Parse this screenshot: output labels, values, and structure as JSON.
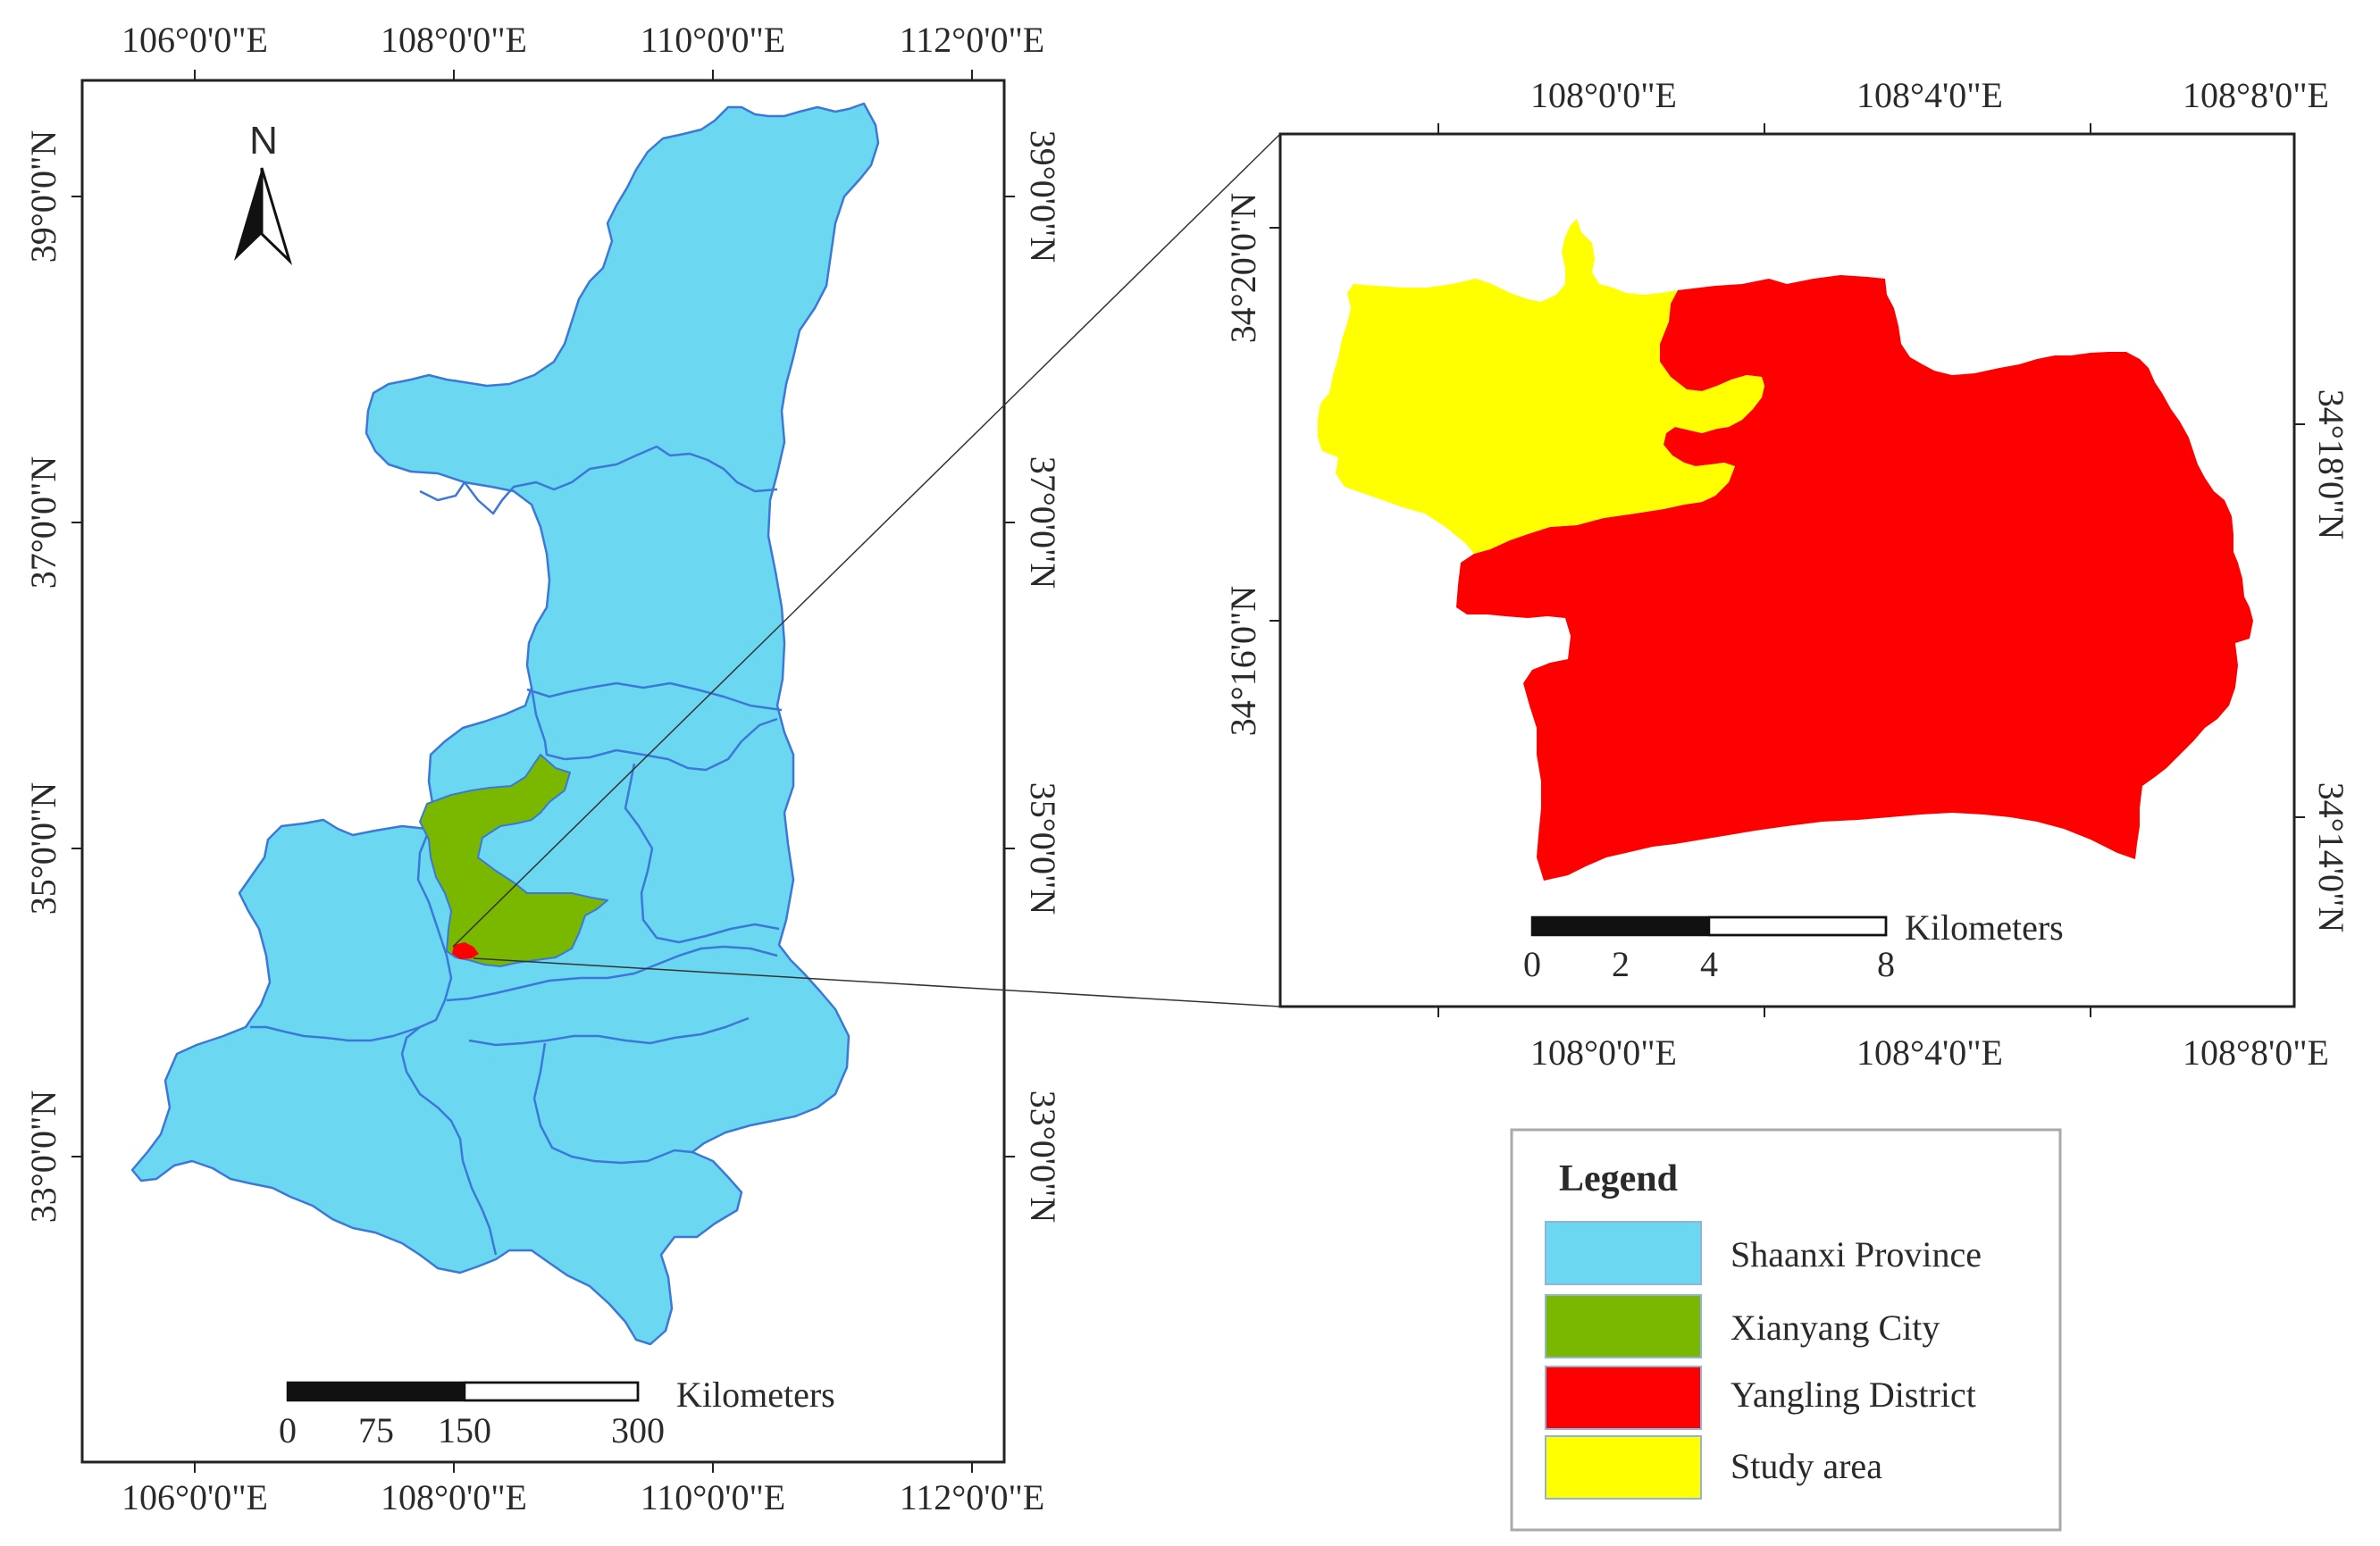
{
  "colors": {
    "province": "#6cd7f0",
    "province_border": "#3b78d8",
    "city": "#7ab800",
    "district": "#ff0000",
    "study_area": "#ffff00",
    "frame": "#222222"
  },
  "north_arrow": {
    "label": "N",
    "icon": "north-arrow-icon"
  },
  "overview": {
    "top_ticks": [
      "106°0'0\"E",
      "108°0'0\"E",
      "110°0'0\"E",
      "112°0'0\"E"
    ],
    "bottom_ticks": [
      "106°0'0\"E",
      "108°0'0\"E",
      "110°0'0\"E",
      "112°0'0\"E"
    ],
    "left_ticks": [
      "39°0'0\"N",
      "37°0'0\"N",
      "35°0'0\"N",
      "33°0'0\"N"
    ],
    "right_ticks": [
      "39°0'0\"N",
      "37°0'0\"N",
      "35°0'0\"N",
      "33°0'0\"N"
    ],
    "scalebar": {
      "unit": "Kilometers",
      "labels": [
        "0",
        "75",
        "150",
        "300"
      ]
    }
  },
  "inset": {
    "top_ticks": [
      "108°0'0\"E",
      "108°4'0\"E",
      "108°8'0\"E"
    ],
    "bottom_ticks": [
      "108°0'0\"E",
      "108°4'0\"E",
      "108°8'0\"E"
    ],
    "left_ticks": [
      "34°20'0\"N",
      "34°16'0\"N"
    ],
    "right_ticks": [
      "34°18'0\"N",
      "34°14'0\"N"
    ],
    "scalebar": {
      "unit": "Kilometers",
      "labels": [
        "0",
        "2",
        "4",
        "8"
      ]
    }
  },
  "legend": {
    "title": "Legend",
    "items": [
      {
        "label": "Shaanxi Province",
        "color": "#6cd7f0"
      },
      {
        "label": "Xianyang City",
        "color": "#7ab800"
      },
      {
        "label": "Yangling District",
        "color": "#ff0000"
      },
      {
        "label": "Study area",
        "color": "#ffff00"
      }
    ]
  }
}
